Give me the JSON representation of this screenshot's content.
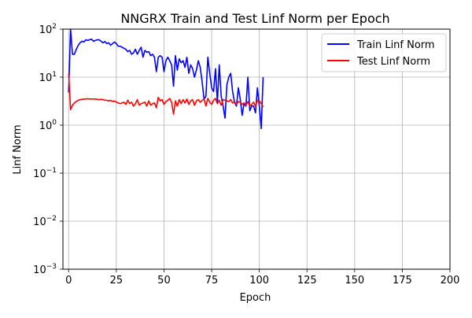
{
  "chart_data": {
    "type": "line",
    "title": "NNGRX Train and Test Linf Norm per Epoch",
    "xlabel": "Epoch",
    "ylabel": "Linf Norm",
    "xlim": [
      -3,
      200
    ],
    "ylim": [
      0.001,
      100
    ],
    "yscale": "log",
    "grid": true,
    "legend_position": "upper-right",
    "xticks": [
      0,
      25,
      50,
      75,
      100,
      125,
      150,
      175,
      200
    ],
    "yticks": [
      {
        "value": 0.001,
        "base": "10",
        "exp": "−3"
      },
      {
        "value": 0.01,
        "base": "10",
        "exp": "−2"
      },
      {
        "value": 0.1,
        "base": "10",
        "exp": "−1"
      },
      {
        "value": 1,
        "base": "10",
        "exp": "0"
      },
      {
        "value": 10,
        "base": "10",
        "exp": "1"
      },
      {
        "value": 100,
        "base": "10",
        "exp": "2"
      }
    ],
    "series": [
      {
        "name": "Train Linf Norm",
        "color": "#0000ff",
        "x": [
          0,
          1,
          2,
          3,
          4,
          5,
          6,
          7,
          8,
          9,
          10,
          11,
          12,
          13,
          14,
          15,
          16,
          17,
          18,
          19,
          20,
          21,
          22,
          23,
          24,
          25,
          26,
          27,
          28,
          29,
          30,
          31,
          32,
          33,
          34,
          35,
          36,
          37,
          38,
          39,
          40,
          41,
          42,
          43,
          44,
          45,
          46,
          47,
          48,
          49,
          50,
          51,
          52,
          53,
          54,
          55,
          56,
          57,
          58,
          59,
          60,
          61,
          62,
          63,
          64,
          65,
          66,
          67,
          68,
          69,
          70,
          71,
          72,
          73,
          74,
          75,
          76,
          77,
          78,
          79,
          80,
          81,
          82,
          83,
          84,
          85,
          86,
          87,
          88,
          89,
          90,
          91,
          92,
          93,
          94,
          95,
          96,
          97,
          98,
          99,
          100,
          101,
          102
        ],
        "y": [
          4.8,
          100,
          30,
          30,
          38,
          46,
          52,
          56,
          54,
          60,
          58,
          60,
          62,
          56,
          58,
          60,
          60,
          56,
          52,
          55,
          50,
          52,
          46,
          50,
          54,
          50,
          44,
          44,
          42,
          40,
          38,
          34,
          36,
          30,
          32,
          38,
          30,
          36,
          42,
          26,
          36,
          33,
          34,
          28,
          30,
          26,
          13,
          26,
          28,
          26,
          13,
          22,
          26,
          22,
          18,
          6.5,
          28,
          14,
          24,
          20,
          22,
          16,
          26,
          12,
          18,
          15,
          10,
          14,
          22,
          16,
          8,
          3.5,
          4,
          26,
          12,
          6,
          5,
          15,
          3,
          18,
          4,
          2.5,
          1.4,
          7,
          10,
          12,
          5,
          3,
          2.5,
          6,
          3.5,
          1.6,
          2.8,
          2.5,
          10,
          2,
          2.5,
          2.5,
          1.8,
          6,
          2.5,
          0.85,
          10
        ]
      },
      {
        "name": "Test Linf Norm",
        "color": "#ff0000",
        "x": [
          0,
          1,
          2,
          3,
          4,
          5,
          6,
          7,
          8,
          9,
          10,
          11,
          12,
          13,
          14,
          15,
          16,
          17,
          18,
          19,
          20,
          21,
          22,
          23,
          24,
          25,
          26,
          27,
          28,
          29,
          30,
          31,
          32,
          33,
          34,
          35,
          36,
          37,
          38,
          39,
          40,
          41,
          42,
          43,
          44,
          45,
          46,
          47,
          48,
          49,
          50,
          51,
          52,
          53,
          54,
          55,
          56,
          57,
          58,
          59,
          60,
          61,
          62,
          63,
          64,
          65,
          66,
          67,
          68,
          69,
          70,
          71,
          72,
          73,
          74,
          75,
          76,
          77,
          78,
          79,
          80,
          81,
          82,
          83,
          84,
          85,
          86,
          87,
          88,
          89,
          90,
          91,
          92,
          93,
          94,
          95,
          96,
          97,
          98,
          99,
          100,
          101,
          102
        ],
        "y": [
          12,
          2.1,
          2.6,
          2.9,
          3.1,
          3.3,
          3.4,
          3.45,
          3.5,
          3.5,
          3.55,
          3.5,
          3.5,
          3.5,
          3.5,
          3.45,
          3.4,
          3.45,
          3.4,
          3.3,
          3.3,
          3.2,
          3.3,
          3.1,
          3.2,
          3.0,
          2.9,
          2.8,
          2.9,
          3.0,
          2.7,
          3.3,
          2.8,
          3.0,
          2.5,
          2.8,
          3.4,
          2.6,
          2.8,
          2.9,
          3.0,
          2.5,
          3.2,
          2.6,
          2.8,
          2.9,
          2.3,
          3.8,
          3.2,
          3.4,
          2.7,
          3.1,
          3.3,
          3.6,
          3.0,
          1.7,
          3.2,
          2.5,
          3.4,
          2.8,
          3.4,
          2.9,
          3.5,
          2.7,
          3.2,
          3.4,
          2.6,
          3.2,
          3.4,
          3.0,
          3.3,
          3.5,
          2.5,
          3.6,
          3.0,
          2.7,
          3.3,
          3.6,
          2.8,
          3.3,
          2.6,
          3.4,
          3.3,
          3.2,
          3.1,
          3.4,
          2.9,
          3.0,
          2.7,
          3.1,
          3.0,
          2.7,
          2.9,
          2.6,
          3.1,
          2.5,
          2.7,
          3.0,
          2.5,
          3.3,
          3.2,
          2.8,
          2.4
        ]
      }
    ]
  }
}
